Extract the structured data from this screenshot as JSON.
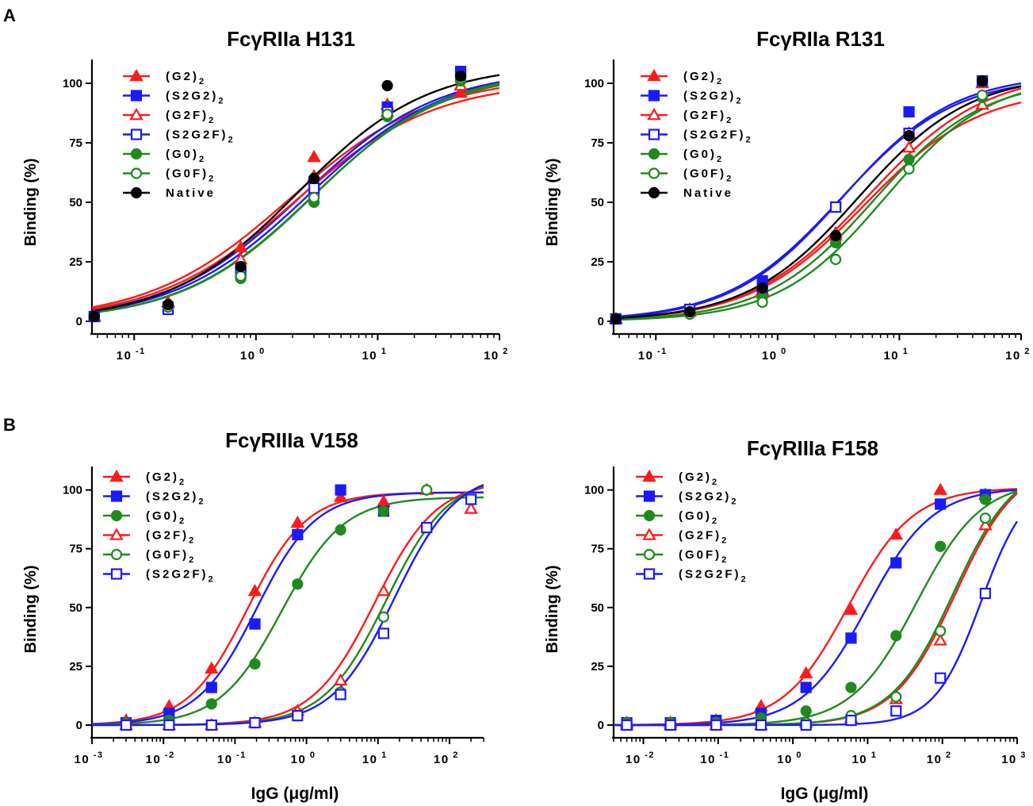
{
  "panel_labels": {
    "A": "A",
    "B": "B"
  },
  "shared_labels": {
    "ylabel": "Binding (%)",
    "xlabel": "IgG (μg/ml)"
  },
  "colors": {
    "red": "#ff1a1a",
    "blue": "#1a1aff",
    "green": "#1f8a1f",
    "black": "#000000"
  },
  "chart_data": [
    {
      "id": "h131",
      "type": "scatter",
      "title": "FcγRIIa H131",
      "xscale": "log",
      "xlim": [
        0.045,
        100
      ],
      "ylim": [
        0,
        110
      ],
      "yticks": [
        0,
        25,
        50,
        75,
        100
      ],
      "xtick_exponents": [
        -1,
        0,
        1,
        2
      ],
      "xlabel": "",
      "ylabel": "Binding (%)",
      "legend_position": "top-left",
      "series": [
        {
          "name": "(G2)",
          "sub": "2",
          "color": "red",
          "marker": "triangle",
          "filled": true,
          "ec50": 1.9,
          "hill": 0.75,
          "top": 103,
          "x": [
            0.047,
            0.19,
            0.75,
            3.0,
            12,
            48
          ],
          "y": [
            2,
            8,
            31,
            69,
            91,
            96
          ]
        },
        {
          "name": "(S2G2)",
          "sub": "2",
          "color": "blue",
          "marker": "square",
          "filled": true,
          "ec50": 2.4,
          "hill": 0.78,
          "top": 106,
          "x": [
            0.047,
            0.19,
            0.75,
            3.0,
            12,
            48
          ],
          "y": [
            2,
            6,
            21,
            55,
            90,
            105
          ]
        },
        {
          "name": "(G2F)",
          "sub": "2",
          "color": "red",
          "marker": "triangle",
          "filled": false,
          "ec50": 2.1,
          "hill": 0.76,
          "top": 101,
          "x": [
            0.047,
            0.19,
            0.75,
            3.0,
            12,
            48
          ],
          "y": [
            2,
            8,
            26,
            61,
            88,
            99
          ]
        },
        {
          "name": "(S2G2F)",
          "sub": "2",
          "color": "blue",
          "marker": "square",
          "filled": false,
          "ec50": 2.7,
          "hill": 0.78,
          "top": 106,
          "x": [
            0.047,
            0.19,
            0.75,
            3.0,
            12,
            48
          ],
          "y": [
            2,
            5,
            20,
            56,
            88,
            103
          ]
        },
        {
          "name": "(G0)",
          "sub": "2",
          "color": "green",
          "marker": "circle",
          "filled": true,
          "ec50": 3.0,
          "hill": 0.8,
          "top": 106,
          "x": [
            0.047,
            0.19,
            0.75,
            3.0,
            12,
            48
          ],
          "y": [
            2,
            6,
            18,
            50,
            86,
            101
          ]
        },
        {
          "name": "(G0F)",
          "sub": "2",
          "color": "green",
          "marker": "circle",
          "filled": false,
          "ec50": 2.9,
          "hill": 0.8,
          "top": 105,
          "x": [
            0.047,
            0.19,
            0.75,
            3.0,
            12,
            48
          ],
          "y": [
            2,
            6,
            19,
            52,
            87,
            102
          ]
        },
        {
          "name": "Native",
          "sub": "",
          "color": "black",
          "marker": "circle",
          "filled": true,
          "ec50": 2.2,
          "hill": 0.82,
          "top": 108,
          "x": [
            0.047,
            0.19,
            0.75,
            3.0,
            12,
            48
          ],
          "y": [
            2,
            7,
            23,
            60,
            99,
            103
          ]
        }
      ]
    },
    {
      "id": "r131",
      "type": "scatter",
      "title": "FcγRIIa R131",
      "xscale": "log",
      "xlim": [
        0.045,
        100
      ],
      "ylim": [
        0,
        110
      ],
      "yticks": [
        0,
        25,
        50,
        75,
        100
      ],
      "xtick_exponents": [
        -1,
        0,
        1,
        2
      ],
      "xlabel": "",
      "ylabel": "Binding (%)",
      "legend_position": "top-left",
      "series": [
        {
          "name": "(G2)",
          "sub": "2",
          "color": "red",
          "marker": "triangle",
          "filled": true,
          "ec50": 5.5,
          "hill": 0.9,
          "top": 105,
          "x": [
            0.047,
            0.19,
            0.75,
            3.0,
            12,
            48
          ],
          "y": [
            1,
            5,
            13,
            36,
            79,
            100
          ]
        },
        {
          "name": "(S2G2)",
          "sub": "2",
          "color": "blue",
          "marker": "square",
          "filled": true,
          "ec50": 3.4,
          "hill": 0.95,
          "top": 104,
          "x": [
            0.047,
            0.19,
            0.75,
            3.0,
            12,
            48
          ],
          "y": [
            1,
            5,
            17,
            48,
            88,
            101
          ]
        },
        {
          "name": "(G2F)",
          "sub": "2",
          "color": "red",
          "marker": "triangle",
          "filled": false,
          "ec50": 5.2,
          "hill": 0.92,
          "top": 98,
          "x": [
            0.047,
            0.19,
            0.75,
            3.0,
            12,
            48
          ],
          "y": [
            1,
            4,
            12,
            37,
            73,
            91
          ]
        },
        {
          "name": "(S2G2F)",
          "sub": "2",
          "color": "blue",
          "marker": "square",
          "filled": false,
          "ec50": 3.3,
          "hill": 0.93,
          "top": 103,
          "x": [
            0.047,
            0.19,
            0.75,
            3.0,
            12,
            48
          ],
          "y": [
            1,
            5,
            14,
            48,
            79,
            101
          ]
        },
        {
          "name": "(G0)",
          "sub": "2",
          "color": "green",
          "marker": "circle",
          "filled": true,
          "ec50": 6.2,
          "hill": 0.97,
          "top": 102,
          "x": [
            0.047,
            0.19,
            0.75,
            3.0,
            12,
            48
          ],
          "y": [
            1,
            3,
            10,
            33,
            68,
            94
          ]
        },
        {
          "name": "(G0F)",
          "sub": "2",
          "color": "green",
          "marker": "circle",
          "filled": false,
          "ec50": 7.5,
          "hill": 1.0,
          "top": 103,
          "x": [
            0.047,
            0.19,
            0.75,
            3.0,
            12,
            48
          ],
          "y": [
            1,
            3,
            8,
            26,
            64,
            95
          ]
        },
        {
          "name": "Native",
          "sub": "",
          "color": "black",
          "marker": "circle",
          "filled": true,
          "ec50": 4.6,
          "hill": 0.95,
          "top": 104,
          "x": [
            0.047,
            0.19,
            0.75,
            3.0,
            12,
            48
          ],
          "y": [
            1,
            4,
            14,
            36,
            78,
            101
          ]
        }
      ]
    },
    {
      "id": "v158",
      "type": "scatter",
      "title": "FcγRIIIa V158",
      "xscale": "log",
      "xlim": [
        0.001,
        300
      ],
      "ylim": [
        0,
        110
      ],
      "yticks": [
        0,
        25,
        50,
        75,
        100
      ],
      "xtick_exponents": [
        -3,
        -2,
        -1,
        0,
        1,
        2
      ],
      "xlabel": "IgG (μg/ml)",
      "ylabel": "Binding (%)",
      "legend_position": "top-left",
      "series": [
        {
          "name": "(G2)",
          "sub": "2",
          "color": "red",
          "marker": "triangle",
          "filled": true,
          "ec50": 0.15,
          "hill": 1.05,
          "top": 99,
          "x": [
            0.003,
            0.012,
            0.047,
            0.19,
            0.75,
            3.0,
            12,
            200
          ],
          "y": [
            2,
            8,
            24,
            57,
            86,
            97,
            95,
            92
          ]
        },
        {
          "name": "(S2G2)",
          "sub": "2",
          "color": "blue",
          "marker": "square",
          "filled": true,
          "ec50": 0.2,
          "hill": 1.05,
          "top": 99,
          "x": [
            0.003,
            0.012,
            0.047,
            0.19,
            0.75,
            3.0,
            12
          ],
          "y": [
            1,
            5,
            16,
            43,
            81,
            100,
            91
          ]
        },
        {
          "name": "(G0)",
          "sub": "2",
          "color": "green",
          "marker": "circle",
          "filled": true,
          "ec50": 0.45,
          "hill": 1.0,
          "top": 97,
          "x": [
            0.003,
            0.012,
            0.047,
            0.19,
            0.75,
            3.0,
            12,
            48
          ],
          "y": [
            1,
            2,
            9,
            26,
            60,
            83,
            91,
            100
          ]
        },
        {
          "name": "(G2F)",
          "sub": "2",
          "color": "red",
          "marker": "triangle",
          "filled": false,
          "ec50": 9.0,
          "hill": 1.0,
          "top": 104,
          "x": [
            0.003,
            0.012,
            0.047,
            0.19,
            0.75,
            3.0,
            12,
            48,
            200
          ],
          "y": [
            0,
            0,
            0,
            1,
            6,
            19,
            57,
            100,
            92
          ]
        },
        {
          "name": "(G0F)",
          "sub": "2",
          "color": "green",
          "marker": "circle",
          "filled": false,
          "ec50": 13,
          "hill": 1.0,
          "top": 106,
          "x": [
            0.003,
            0.012,
            0.047,
            0.19,
            0.75,
            3.0,
            12,
            48
          ],
          "y": [
            0,
            0,
            0,
            1,
            4,
            14,
            46,
            100
          ]
        },
        {
          "name": "(S2G2F)",
          "sub": "2",
          "color": "blue",
          "marker": "square",
          "filled": false,
          "ec50": 17,
          "hill": 1.0,
          "top": 108,
          "x": [
            0.003,
            0.012,
            0.047,
            0.19,
            0.75,
            3.0,
            12,
            48,
            200
          ],
          "y": [
            0,
            0,
            0,
            1,
            4,
            13,
            39,
            84,
            96
          ]
        }
      ]
    },
    {
      "id": "f158",
      "type": "scatter",
      "title": "FcγRIIIa F158",
      "xscale": "log",
      "xlim": [
        0.004,
        1000
      ],
      "ylim": [
        0,
        110
      ],
      "yticks": [
        0,
        25,
        50,
        75,
        100
      ],
      "xtick_exponents": [
        -2,
        -1,
        0,
        1,
        2,
        3
      ],
      "xlabel": "IgG (μg/ml)",
      "ylabel": "Binding (%)",
      "legend_position": "top-left",
      "series": [
        {
          "name": "(G2)",
          "sub": "2",
          "color": "red",
          "marker": "triangle",
          "filled": true,
          "ec50": 5.5,
          "hill": 1.0,
          "top": 101,
          "x": [
            0.006,
            0.023,
            0.094,
            0.375,
            1.5,
            6,
            24,
            94,
            375
          ],
          "y": [
            1,
            1,
            2,
            8,
            22,
            49,
            81,
            100,
            98
          ]
        },
        {
          "name": "(S2G2)",
          "sub": "2",
          "color": "blue",
          "marker": "square",
          "filled": true,
          "ec50": 10,
          "hill": 1.0,
          "top": 101,
          "x": [
            0.006,
            0.023,
            0.094,
            0.375,
            1.5,
            6,
            24,
            94,
            375
          ],
          "y": [
            1,
            1,
            2,
            5,
            16,
            37,
            69,
            94,
            98
          ]
        },
        {
          "name": "(G0)",
          "sub": "2",
          "color": "green",
          "marker": "circle",
          "filled": true,
          "ec50": 45,
          "hill": 1.0,
          "top": 104,
          "x": [
            0.006,
            0.023,
            0.094,
            0.375,
            1.5,
            6,
            24,
            94,
            375
          ],
          "y": [
            1,
            1,
            1,
            3,
            6,
            16,
            38,
            76,
            96
          ]
        },
        {
          "name": "(G2F)",
          "sub": "2",
          "color": "red",
          "marker": "triangle",
          "filled": false,
          "ec50": 150,
          "hill": 1.05,
          "top": 112,
          "x": [
            0.006,
            0.023,
            0.094,
            0.375,
            1.5,
            6,
            24,
            94,
            375
          ],
          "y": [
            0,
            0,
            0,
            0,
            1,
            3,
            11,
            36,
            85
          ]
        },
        {
          "name": "(G0F)",
          "sub": "2",
          "color": "green",
          "marker": "circle",
          "filled": false,
          "ec50": 140,
          "hill": 1.05,
          "top": 112,
          "x": [
            0.006,
            0.023,
            0.094,
            0.375,
            1.5,
            6,
            24,
            94,
            375
          ],
          "y": [
            0,
            0,
            0,
            0,
            1,
            4,
            12,
            40,
            88
          ]
        },
        {
          "name": "(S2G2F)",
          "sub": "2",
          "color": "blue",
          "marker": "square",
          "filled": false,
          "ec50": 330,
          "hill": 1.4,
          "top": 105,
          "x": [
            0.006,
            0.023,
            0.094,
            0.375,
            1.5,
            6,
            24,
            94,
            375
          ],
          "y": [
            0,
            0,
            0,
            0,
            0,
            2,
            6,
            20,
            56
          ]
        }
      ]
    }
  ]
}
